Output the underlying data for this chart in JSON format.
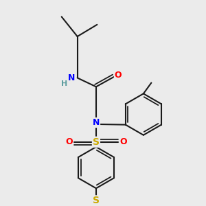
{
  "bg_color": "#ebebeb",
  "bond_color": "#1a1a1a",
  "N_color": "#0000ff",
  "O_color": "#ff0000",
  "S_color": "#ccaa00",
  "H_color": "#5f9ea0",
  "bond_width": 1.5,
  "figsize": [
    3.0,
    3.0
  ],
  "dpi": 100,
  "xlim": [
    0,
    10
  ],
  "ylim": [
    0,
    10
  ],
  "font_size": 9
}
